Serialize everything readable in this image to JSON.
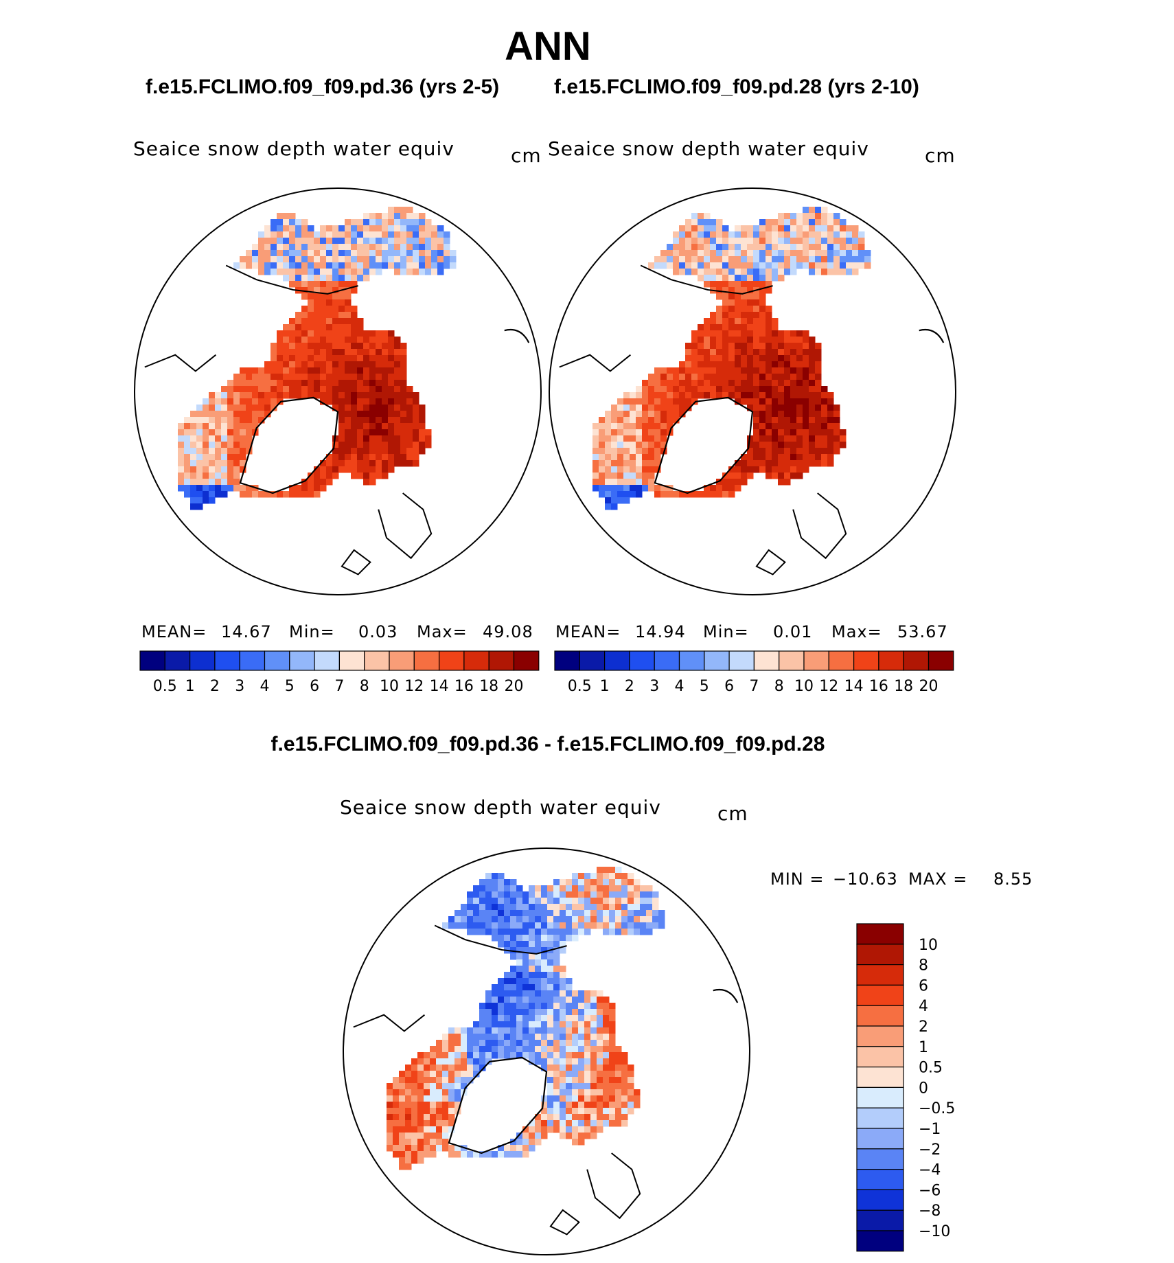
{
  "title": "ANN",
  "case_titles": {
    "left": "f.e15.FCLIMO.f09_f09.pd.36 (yrs 2-5)",
    "right": "f.e15.FCLIMO.f09_f09.pd.28 (yrs 2-10)",
    "difference": "f.e15.FCLIMO.f09_f09.pd.36 - f.e15.FCLIMO.f09_f09.pd.28"
  },
  "chart_data": [
    {
      "type": "heatmap",
      "projection": "north polar stereographic",
      "variable": "Seaice snow depth water equiv",
      "units": "cm",
      "stats": {
        "mean_label": "MEAN=",
        "mean": "14.67",
        "min_label": "Min=",
        "min": "0.03",
        "max_label": "Max=",
        "max": "49.08"
      },
      "colorbar": {
        "orientation": "horizontal",
        "levels": [
          "0.5",
          "1",
          "2",
          "3",
          "4",
          "5",
          "6",
          "7",
          "8",
          "10",
          "12",
          "14",
          "16",
          "18",
          "20"
        ],
        "colors": [
          "#00007f",
          "#0a1aa8",
          "#0d2fd0",
          "#1f4ff0",
          "#3a6cf6",
          "#6090f8",
          "#93b7fa",
          "#c3dafc",
          "#fde3d3",
          "#fbc3a7",
          "#f99d77",
          "#f66f41",
          "#f04318",
          "#d62b0a",
          "#b01704",
          "#8a0000"
        ]
      }
    },
    {
      "type": "heatmap",
      "projection": "north polar stereographic",
      "variable": "Seaice snow depth water equiv",
      "units": "cm",
      "stats": {
        "mean_label": "MEAN=",
        "mean": "14.94",
        "min_label": "Min=",
        "min": "0.01",
        "max_label": "Max=",
        "max": "53.67"
      },
      "colorbar": {
        "orientation": "horizontal",
        "levels": [
          "0.5",
          "1",
          "2",
          "3",
          "4",
          "5",
          "6",
          "7",
          "8",
          "10",
          "12",
          "14",
          "16",
          "18",
          "20"
        ],
        "colors": [
          "#00007f",
          "#0a1aa8",
          "#0d2fd0",
          "#1f4ff0",
          "#3a6cf6",
          "#6090f8",
          "#93b7fa",
          "#c3dafc",
          "#fde3d3",
          "#fbc3a7",
          "#f99d77",
          "#f66f41",
          "#f04318",
          "#d62b0a",
          "#b01704",
          "#8a0000"
        ]
      }
    },
    {
      "type": "heatmap",
      "projection": "north polar stereographic",
      "variable": "Seaice snow depth water equiv",
      "units": "cm",
      "stats": {
        "min_label": "MIN =",
        "min": "−10.63",
        "max_label": "MAX =",
        "max": "8.55"
      },
      "colorbar": {
        "orientation": "vertical",
        "levels": [
          "10",
          "8",
          "6",
          "4",
          "2",
          "1",
          "0.5",
          "0",
          "−0.5",
          "−1",
          "−2",
          "−4",
          "−6",
          "−8",
          "−10"
        ],
        "colors": [
          "#8a0000",
          "#b01704",
          "#d62b0a",
          "#f04318",
          "#f66f41",
          "#f99d77",
          "#fbc3a7",
          "#fde3d3",
          "#d9ecfd",
          "#b3cdfb",
          "#8baaf8",
          "#5a84f5",
          "#2d5bf0",
          "#0f33d8",
          "#0a1aa8",
          "#00007f"
        ]
      }
    }
  ]
}
